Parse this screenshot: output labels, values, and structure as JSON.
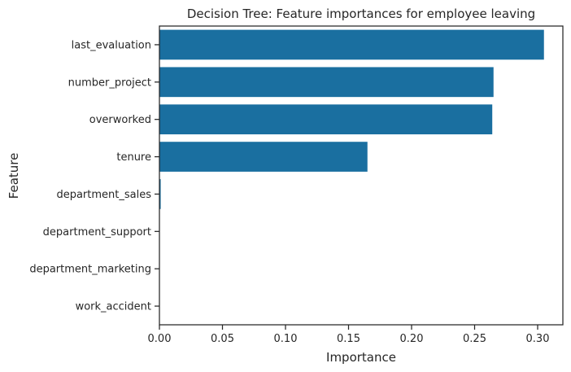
{
  "chart_data": {
    "type": "bar",
    "orientation": "horizontal",
    "title": "Decision Tree: Feature importances for employee leaving",
    "xlabel": "Importance",
    "ylabel": "Feature",
    "categories": [
      "last_evaluation",
      "number_project",
      "overworked",
      "tenure",
      "department_sales",
      "department_support",
      "department_marketing",
      "work_accident"
    ],
    "values": [
      0.305,
      0.265,
      0.264,
      0.165,
      0.001,
      0.0,
      0.0,
      0.0
    ],
    "xlim": [
      0,
      0.32
    ],
    "xticks": [
      "0.00",
      "0.05",
      "0.10",
      "0.15",
      "0.20",
      "0.25",
      "0.30"
    ],
    "xtick_values": [
      0,
      0.05,
      0.1,
      0.15,
      0.2,
      0.25,
      0.3
    ],
    "grid": false,
    "bar_color": "#1a6fa0"
  }
}
